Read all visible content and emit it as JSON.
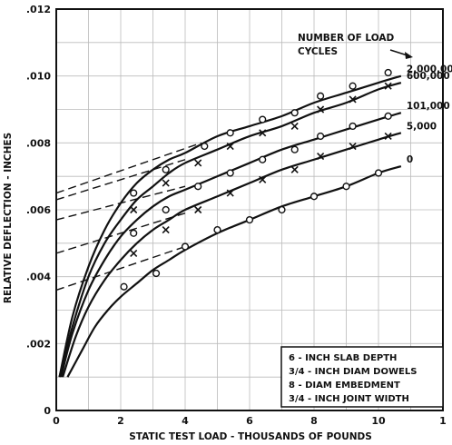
{
  "chart_data": {
    "type": "line",
    "xlabel": "STATIC TEST LOAD - THOUSANDS OF POUNDS",
    "ylabel": "RELATIVE DEFLECTION - INCHES",
    "xlim": [
      0,
      12
    ],
    "ylim": [
      0,
      0.012
    ],
    "x_ticks": [
      "0",
      "2",
      "4",
      "6",
      "8",
      "10",
      "1"
    ],
    "y_ticks": [
      ".002",
      ".004",
      ".006",
      ".008",
      ".010",
      ".012"
    ],
    "grid": true,
    "legend_title": "NUMBER OF LOAD CYCLES",
    "note": [
      "6 - INCH SLAB DEPTH",
      "3/4 - INCH DIAM DOWELS",
      "8 - DIAM EMBEDMENT",
      "3/4 - INCH JOINT WIDTH"
    ],
    "series": [
      {
        "name": "2,000,000",
        "marker": "o",
        "curve": [
          [
            0.1,
            0.001
          ],
          [
            0.5,
            0.0028
          ],
          [
            1.0,
            0.0043
          ],
          [
            1.5,
            0.0054
          ],
          [
            2.0,
            0.0062
          ],
          [
            2.5,
            0.0068
          ],
          [
            3.0,
            0.0072
          ],
          [
            3.5,
            0.0075
          ],
          [
            4.0,
            0.0077
          ],
          [
            5.0,
            0.0082
          ],
          [
            6.0,
            0.0085
          ],
          [
            7.0,
            0.0088
          ],
          [
            8.0,
            0.0092
          ],
          [
            9.0,
            0.0095
          ],
          [
            10.0,
            0.0098
          ],
          [
            10.7,
            0.01
          ]
        ],
        "extrapolation": [
          [
            0,
            0.0065
          ],
          [
            4.5,
            0.008
          ]
        ],
        "points": [
          [
            2.4,
            0.0065
          ],
          [
            3.4,
            0.0072
          ],
          [
            4.6,
            0.0079
          ],
          [
            5.4,
            0.0083
          ],
          [
            6.4,
            0.0087
          ],
          [
            7.4,
            0.0089
          ],
          [
            8.2,
            0.0094
          ],
          [
            9.2,
            0.0097
          ],
          [
            10.3,
            0.0101
          ]
        ]
      },
      {
        "name": "600,000",
        "marker": "x",
        "curve": [
          [
            0.1,
            0.001
          ],
          [
            0.5,
            0.0025
          ],
          [
            1.0,
            0.004
          ],
          [
            1.5,
            0.005
          ],
          [
            2.0,
            0.0057
          ],
          [
            2.5,
            0.0063
          ],
          [
            3.0,
            0.0067
          ],
          [
            3.5,
            0.0071
          ],
          [
            4.0,
            0.0074
          ],
          [
            5.0,
            0.0078
          ],
          [
            6.0,
            0.0082
          ],
          [
            7.0,
            0.0085
          ],
          [
            8.0,
            0.0089
          ],
          [
            9.0,
            0.0092
          ],
          [
            10.0,
            0.0096
          ],
          [
            10.7,
            0.0098
          ]
        ],
        "extrapolation": [
          [
            0,
            0.0063
          ],
          [
            4.0,
            0.0075
          ]
        ],
        "points": [
          [
            2.4,
            0.006
          ],
          [
            3.4,
            0.0068
          ],
          [
            4.4,
            0.0074
          ],
          [
            5.4,
            0.0079
          ],
          [
            6.4,
            0.0083
          ],
          [
            7.4,
            0.0085
          ],
          [
            8.2,
            0.009
          ],
          [
            9.2,
            0.0093
          ],
          [
            10.3,
            0.0097
          ]
        ]
      },
      {
        "name": "101,000",
        "marker": "o",
        "curve": [
          [
            0.15,
            0.001
          ],
          [
            0.5,
            0.0023
          ],
          [
            1.0,
            0.0036
          ],
          [
            1.5,
            0.0045
          ],
          [
            2.0,
            0.0052
          ],
          [
            2.5,
            0.0057
          ],
          [
            3.0,
            0.0061
          ],
          [
            3.5,
            0.0064
          ],
          [
            4.0,
            0.0066
          ],
          [
            5.0,
            0.007
          ],
          [
            6.0,
            0.0074
          ],
          [
            7.0,
            0.0078
          ],
          [
            8.0,
            0.0081
          ],
          [
            9.0,
            0.0084
          ],
          [
            10.0,
            0.0087
          ],
          [
            10.7,
            0.0089
          ]
        ],
        "extrapolation": [
          [
            0,
            0.0057
          ],
          [
            4.0,
            0.0067
          ]
        ],
        "points": [
          [
            2.4,
            0.0053
          ],
          [
            3.4,
            0.006
          ],
          [
            4.4,
            0.0067
          ],
          [
            5.4,
            0.0071
          ],
          [
            6.4,
            0.0075
          ],
          [
            7.4,
            0.0078
          ],
          [
            8.2,
            0.0082
          ],
          [
            9.2,
            0.0085
          ],
          [
            10.3,
            0.0088
          ]
        ]
      },
      {
        "name": "5,000",
        "marker": "x",
        "curve": [
          [
            0.2,
            0.001
          ],
          [
            0.6,
            0.0022
          ],
          [
            1.0,
            0.0031
          ],
          [
            1.5,
            0.0039
          ],
          [
            2.0,
            0.0045
          ],
          [
            2.5,
            0.005
          ],
          [
            3.0,
            0.0054
          ],
          [
            3.5,
            0.0057
          ],
          [
            4.0,
            0.006
          ],
          [
            5.0,
            0.0064
          ],
          [
            6.0,
            0.0068
          ],
          [
            7.0,
            0.0072
          ],
          [
            8.0,
            0.0075
          ],
          [
            9.0,
            0.0078
          ],
          [
            10.0,
            0.0081
          ],
          [
            10.7,
            0.0083
          ]
        ],
        "extrapolation": [
          [
            0,
            0.0047
          ],
          [
            4.0,
            0.0059
          ]
        ],
        "points": [
          [
            2.4,
            0.0047
          ],
          [
            3.4,
            0.0054
          ],
          [
            4.4,
            0.006
          ],
          [
            5.4,
            0.0065
          ],
          [
            6.4,
            0.0069
          ],
          [
            7.4,
            0.0072
          ],
          [
            8.2,
            0.0076
          ],
          [
            9.2,
            0.0079
          ],
          [
            10.3,
            0.0082
          ]
        ]
      },
      {
        "name": "0",
        "marker": "o",
        "curve": [
          [
            0.35,
            0.001
          ],
          [
            0.8,
            0.0018
          ],
          [
            1.2,
            0.0025
          ],
          [
            1.6,
            0.003
          ],
          [
            2.0,
            0.0034
          ],
          [
            2.5,
            0.0038
          ],
          [
            3.0,
            0.0042
          ],
          [
            3.5,
            0.0045
          ],
          [
            4.0,
            0.0048
          ],
          [
            5.0,
            0.0053
          ],
          [
            6.0,
            0.0057
          ],
          [
            7.0,
            0.0061
          ],
          [
            8.0,
            0.0064
          ],
          [
            9.0,
            0.0067
          ],
          [
            10.0,
            0.0071
          ],
          [
            10.7,
            0.0073
          ]
        ],
        "extrapolation": [
          [
            0,
            0.0036
          ],
          [
            4.0,
            0.0049
          ]
        ],
        "points": [
          [
            2.1,
            0.0037
          ],
          [
            3.1,
            0.0041
          ],
          [
            4.0,
            0.0049
          ],
          [
            5.0,
            0.0054
          ],
          [
            6.0,
            0.0057
          ],
          [
            7.0,
            0.006
          ],
          [
            8.0,
            0.0064
          ],
          [
            9.0,
            0.0067
          ],
          [
            10.0,
            0.0071
          ]
        ]
      }
    ]
  }
}
